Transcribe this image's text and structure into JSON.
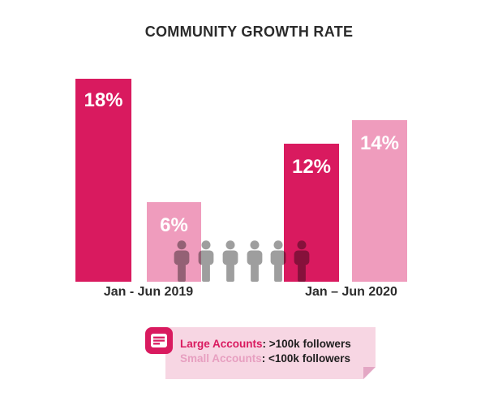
{
  "title": "COMMUNITY GROWTH RATE",
  "chart_data": {
    "type": "bar",
    "title": "COMMUNITY GROWTH RATE",
    "categories": [
      "Jan - Jun 2019",
      "Jan – Jun 2020"
    ],
    "series": [
      {
        "name": "Large Accounts",
        "values": [
          18,
          12
        ],
        "color": "#D91A5F"
      },
      {
        "name": "Small Accounts",
        "values": [
          6,
          14
        ],
        "color": "#EF9CBD"
      }
    ],
    "unit": "%",
    "ylim": [
      0,
      18
    ],
    "grid": false,
    "axis_lines": false,
    "legend_position": "bottom",
    "pictogram": {
      "icon": "person-icon",
      "count": 6,
      "color": "#9E9E9E",
      "blend": "multiply"
    }
  },
  "bars": [
    {
      "label": "18%",
      "series": "Large Accounts",
      "category": "Jan - Jun 2019"
    },
    {
      "label": "6%",
      "series": "Small Accounts",
      "category": "Jan - Jun 2019"
    },
    {
      "label": "12%",
      "series": "Large Accounts",
      "category": "Jan – Jun 2020"
    },
    {
      "label": "14%",
      "series": "Small Accounts",
      "category": "Jan – Jun 2020"
    }
  ],
  "x_labels": {
    "left": "Jan - Jun 2019",
    "right": "Jan – Jun 2020"
  },
  "legend": {
    "icon": "note-icon",
    "background": "#F7D6E3",
    "items": [
      {
        "term": "Large Accounts",
        "desc": ": >100k followers",
        "term_color": "#D91A5F"
      },
      {
        "term": "Small Accounts",
        "desc": ": <100k followers",
        "term_color": "#E79FC0"
      }
    ]
  },
  "colors": {
    "large_accounts": "#D91A5F",
    "small_accounts": "#EF9CBD",
    "note_background": "#F7D6E3",
    "note_fold": "#E3A7C4",
    "pictogram_gray": "#9E9E9E",
    "text_dark": "#2B2B2B",
    "background": "#FFFFFF"
  }
}
